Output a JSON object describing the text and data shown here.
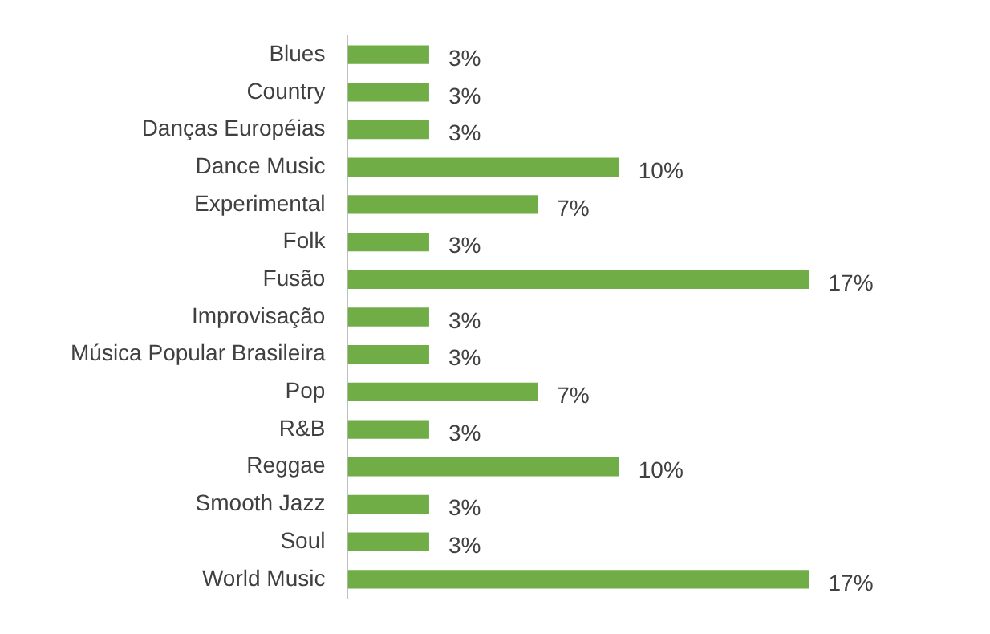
{
  "chart_data": {
    "type": "bar",
    "orientation": "horizontal",
    "categories": [
      "Blues",
      "Country",
      "Danças Européias",
      "Dance Music",
      "Experimental",
      "Folk",
      "Fusão",
      "Improvisação",
      "Música Popular Brasileira",
      "Pop",
      "R&B",
      "Reggae",
      "Smooth Jazz",
      "Soul",
      "World Music"
    ],
    "values": [
      3,
      3,
      3,
      10,
      7,
      3,
      17,
      3,
      3,
      7,
      3,
      10,
      3,
      3,
      17
    ],
    "value_labels": [
      "3%",
      "3%",
      "3%",
      "10%",
      "7%",
      "3%",
      "17%",
      "3%",
      "3%",
      "7%",
      "3%",
      "10%",
      "3%",
      "3%",
      "17%"
    ],
    "color": "#70ad47"
  }
}
